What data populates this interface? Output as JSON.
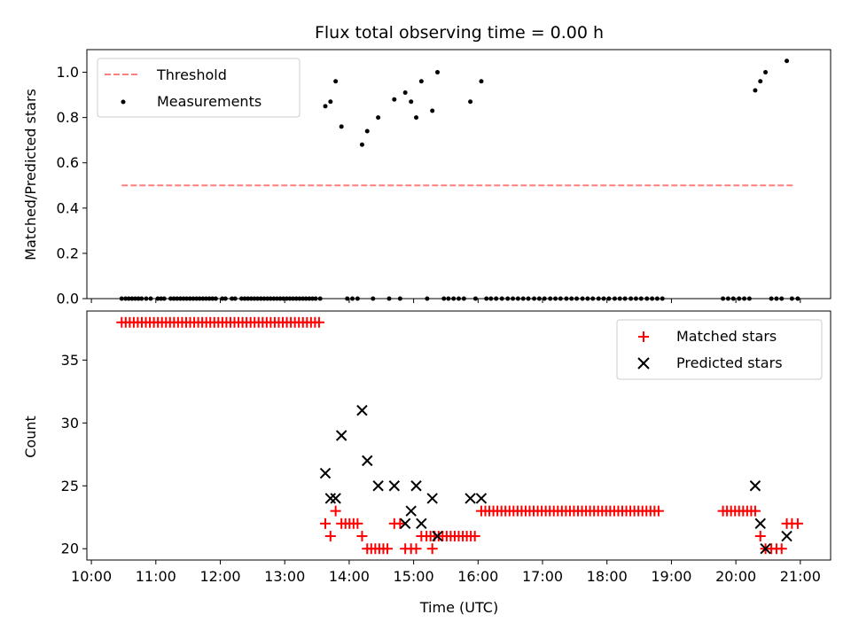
{
  "chart_data": [
    {
      "type": "scatter",
      "title": "Flux total observing time = 0.00 h",
      "xlabel": "",
      "ylabel": "Matched/Predicted stars",
      "xlim_hours": [
        9.93,
        21.47
      ],
      "ylim": [
        0,
        1.1
      ],
      "yticks": [
        0.0,
        0.2,
        0.4,
        0.6,
        0.8,
        1.0
      ],
      "ytick_labels": [
        "0.0",
        "0.2",
        "0.4",
        "0.6",
        "0.8",
        "1.0"
      ],
      "legend": {
        "position": "top-left",
        "entries": [
          "Threshold",
          "Measurements"
        ]
      },
      "threshold": {
        "name": "Threshold",
        "value": 0.5,
        "x_start": 10.47,
        "x_end": 20.9,
        "color": "#ff7f7f"
      },
      "series": [
        {
          "name": "Measurements",
          "color": "#000000",
          "points": [
            [
              10.47,
              0.0
            ],
            [
              10.53,
              0.0
            ],
            [
              10.58,
              0.0
            ],
            [
              10.63,
              0.0
            ],
            [
              10.68,
              0.0
            ],
            [
              10.73,
              0.0
            ],
            [
              10.78,
              0.0
            ],
            [
              10.85,
              0.0
            ],
            [
              10.92,
              0.0
            ],
            [
              11.03,
              0.0
            ],
            [
              11.08,
              0.0
            ],
            [
              11.13,
              0.0
            ],
            [
              11.23,
              0.0
            ],
            [
              11.28,
              0.0
            ],
            [
              11.33,
              0.0
            ],
            [
              11.38,
              0.0
            ],
            [
              11.43,
              0.0
            ],
            [
              11.48,
              0.0
            ],
            [
              11.53,
              0.0
            ],
            [
              11.58,
              0.0
            ],
            [
              11.63,
              0.0
            ],
            [
              11.68,
              0.0
            ],
            [
              11.73,
              0.0
            ],
            [
              11.78,
              0.0
            ],
            [
              11.83,
              0.0
            ],
            [
              11.88,
              0.0
            ],
            [
              11.93,
              0.0
            ],
            [
              12.03,
              0.0
            ],
            [
              12.08,
              0.0
            ],
            [
              12.18,
              0.0
            ],
            [
              12.23,
              0.0
            ],
            [
              12.33,
              0.0
            ],
            [
              12.38,
              0.0
            ],
            [
              12.43,
              0.0
            ],
            [
              12.48,
              0.0
            ],
            [
              12.53,
              0.0
            ],
            [
              12.58,
              0.0
            ],
            [
              12.63,
              0.0
            ],
            [
              12.68,
              0.0
            ],
            [
              12.73,
              0.0
            ],
            [
              12.78,
              0.0
            ],
            [
              12.83,
              0.0
            ],
            [
              12.88,
              0.0
            ],
            [
              12.93,
              0.0
            ],
            [
              12.98,
              0.0
            ],
            [
              13.03,
              0.0
            ],
            [
              13.08,
              0.0
            ],
            [
              13.13,
              0.0
            ],
            [
              13.18,
              0.0
            ],
            [
              13.23,
              0.0
            ],
            [
              13.28,
              0.0
            ],
            [
              13.33,
              0.0
            ],
            [
              13.38,
              0.0
            ],
            [
              13.43,
              0.0
            ],
            [
              13.48,
              0.0
            ],
            [
              13.55,
              0.0
            ],
            [
              13.63,
              0.85
            ],
            [
              13.71,
              0.87
            ],
            [
              13.79,
              0.96
            ],
            [
              13.88,
              0.76
            ],
            [
              13.97,
              0.0
            ],
            [
              14.05,
              0.0
            ],
            [
              14.13,
              0.0
            ],
            [
              14.2,
              0.68
            ],
            [
              14.28,
              0.74
            ],
            [
              14.45,
              0.8
            ],
            [
              14.7,
              0.88
            ],
            [
              14.87,
              0.91
            ],
            [
              14.96,
              0.87
            ],
            [
              15.04,
              0.8
            ],
            [
              15.12,
              0.96
            ],
            [
              15.29,
              0.83
            ],
            [
              15.37,
              1.0
            ],
            [
              15.88,
              0.87
            ],
            [
              16.05,
              0.96
            ],
            [
              14.37,
              0.0
            ],
            [
              14.62,
              0.0
            ],
            [
              14.79,
              0.0
            ],
            [
              15.21,
              0.0
            ],
            [
              15.47,
              0.0
            ],
            [
              15.54,
              0.0
            ],
            [
              15.62,
              0.0
            ],
            [
              15.7,
              0.0
            ],
            [
              15.78,
              0.0
            ],
            [
              15.96,
              0.0
            ],
            [
              16.13,
              0.0
            ],
            [
              16.2,
              0.0
            ],
            [
              16.28,
              0.0
            ],
            [
              16.37,
              0.0
            ],
            [
              16.46,
              0.0
            ],
            [
              16.54,
              0.0
            ],
            [
              16.62,
              0.0
            ],
            [
              16.7,
              0.0
            ],
            [
              16.78,
              0.0
            ],
            [
              16.87,
              0.0
            ],
            [
              16.95,
              0.0
            ],
            [
              17.03,
              0.0
            ],
            [
              17.12,
              0.0
            ],
            [
              17.2,
              0.0
            ],
            [
              17.28,
              0.0
            ],
            [
              17.37,
              0.0
            ],
            [
              17.45,
              0.0
            ],
            [
              17.53,
              0.0
            ],
            [
              17.62,
              0.0
            ],
            [
              17.7,
              0.0
            ],
            [
              17.78,
              0.0
            ],
            [
              17.87,
              0.0
            ],
            [
              17.95,
              0.0
            ],
            [
              18.03,
              0.0
            ],
            [
              18.12,
              0.0
            ],
            [
              18.2,
              0.0
            ],
            [
              18.28,
              0.0
            ],
            [
              18.37,
              0.0
            ],
            [
              18.45,
              0.0
            ],
            [
              18.53,
              0.0
            ],
            [
              18.62,
              0.0
            ],
            [
              18.7,
              0.0
            ],
            [
              18.78,
              0.0
            ],
            [
              18.86,
              0.0
            ],
            [
              19.8,
              0.0
            ],
            [
              19.88,
              0.0
            ],
            [
              19.96,
              0.0
            ],
            [
              20.05,
              0.0
            ],
            [
              20.13,
              0.0
            ],
            [
              20.21,
              0.0
            ],
            [
              20.3,
              0.92
            ],
            [
              20.38,
              0.96
            ],
            [
              20.46,
              1.0
            ],
            [
              20.79,
              1.05
            ],
            [
              20.55,
              0.0
            ],
            [
              20.63,
              0.0
            ],
            [
              20.71,
              0.0
            ],
            [
              20.87,
              0.0
            ],
            [
              20.96,
              0.0
            ]
          ]
        }
      ]
    },
    {
      "type": "scatter",
      "title": "",
      "xlabel": "Time (UTC)",
      "ylabel": "Count",
      "xlim_hours": [
        9.93,
        21.47
      ],
      "ylim": [
        19.1,
        38.9
      ],
      "yticks": [
        20,
        25,
        30,
        35
      ],
      "ytick_labels": [
        "20",
        "25",
        "30",
        "35"
      ],
      "xticks": [
        10,
        11,
        12,
        13,
        14,
        15,
        16,
        17,
        18,
        19,
        20,
        21
      ],
      "xtick_labels": [
        "10:00",
        "11:00",
        "12:00",
        "13:00",
        "14:00",
        "15:00",
        "16:00",
        "17:00",
        "18:00",
        "19:00",
        "20:00",
        "21:00"
      ],
      "legend": {
        "position": "top-right",
        "entries": [
          "Matched stars",
          "Predicted stars"
        ]
      },
      "series": [
        {
          "name": "Matched stars",
          "marker": "plus",
          "color": "#ff0000",
          "runs": [
            {
              "value": 38,
              "x_start": 10.47,
              "x_end": 13.55,
              "step": 0.0625
            },
            {
              "value": 23,
              "x_start": 16.05,
              "x_end": 18.86,
              "step": 0.0625
            },
            {
              "value": 23,
              "x_start": 19.8,
              "x_end": 20.3,
              "step": 0.0625
            },
            {
              "value": 21,
              "x_start": 15.2,
              "x_end": 15.96,
              "step": 0.0625
            },
            {
              "value": 20,
              "x_start": 14.28,
              "x_end": 14.62,
              "step": 0.0625
            },
            {
              "value": 22,
              "x_start": 13.88,
              "x_end": 14.13,
              "step": 0.0625
            }
          ],
          "points": [
            [
              13.63,
              22
            ],
            [
              13.71,
              21
            ],
            [
              13.79,
              23
            ],
            [
              14.2,
              21
            ],
            [
              14.7,
              22
            ],
            [
              14.79,
              22
            ],
            [
              14.87,
              20
            ],
            [
              14.96,
              20
            ],
            [
              15.04,
              20
            ],
            [
              15.12,
              21
            ],
            [
              15.29,
              20
            ],
            [
              20.38,
              21
            ],
            [
              20.46,
              20
            ],
            [
              20.55,
              20
            ],
            [
              20.63,
              20
            ],
            [
              20.71,
              20
            ],
            [
              20.79,
              22
            ],
            [
              20.87,
              22
            ],
            [
              20.96,
              22
            ]
          ]
        },
        {
          "name": "Predicted stars",
          "marker": "x",
          "color": "#000000",
          "points": [
            [
              13.63,
              26
            ],
            [
              13.71,
              24
            ],
            [
              13.79,
              24
            ],
            [
              13.88,
              29
            ],
            [
              14.2,
              31
            ],
            [
              14.28,
              27
            ],
            [
              14.45,
              25
            ],
            [
              14.7,
              25
            ],
            [
              14.87,
              22
            ],
            [
              14.96,
              23
            ],
            [
              15.04,
              25
            ],
            [
              15.12,
              22
            ],
            [
              15.29,
              24
            ],
            [
              15.37,
              21
            ],
            [
              15.88,
              24
            ],
            [
              16.05,
              24
            ],
            [
              20.3,
              25
            ],
            [
              20.38,
              22
            ],
            [
              20.46,
              20
            ],
            [
              20.79,
              21
            ]
          ]
        }
      ]
    }
  ]
}
